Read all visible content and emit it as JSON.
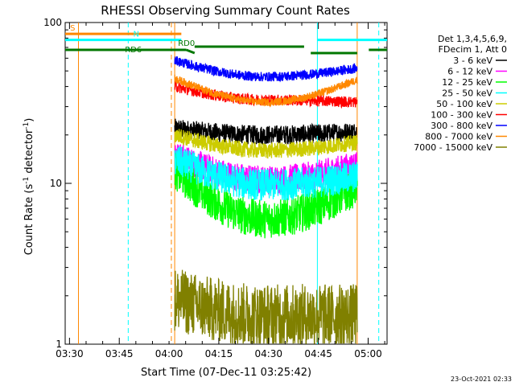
{
  "chart_data": {
    "type": "line",
    "title": "RHESSI Observing Summary Count Rates",
    "xlabel": "Start Time (07-Dec-11 03:25:42)",
    "ylabel": "Count Rate (s",
    "ylabel_sup": "-1",
    "ylabel_tail": " detector",
    "ylabel_end": ")",
    "y_scale": "log",
    "ylim": [
      1,
      100
    ],
    "y_ticks": [
      1,
      10,
      100
    ],
    "y_tick_labels": [
      "1",
      "10",
      "100"
    ],
    "xlim_minutes": [
      3.0,
      100.0
    ],
    "x_ticks_minutes": [
      4.3,
      19.3,
      34.3,
      49.3,
      64.3,
      79.3,
      94.3
    ],
    "x_tick_labels": [
      "03:30",
      "03:45",
      "04:00",
      "04:15",
      "04:30",
      "04:45",
      "05:00"
    ],
    "legend_header": [
      "Det 1,3,4,5,6,9,",
      "FDecim 1, Att 0"
    ],
    "legend_position": "right",
    "timestamp": "23-Oct-2021 02:33",
    "sun_window_minutes": [
      36.0,
      91.0
    ],
    "series": [
      {
        "name": "3 - 6 keV",
        "color": "#000000",
        "values_start": 22,
        "values_mid": 20,
        "values_end": 21,
        "noise": 0.06
      },
      {
        "name": "6 - 12 keV",
        "color": "#ff00ff",
        "values_start": 15,
        "values_mid": 10.5,
        "values_end": 13,
        "noise": 0.09
      },
      {
        "name": "12 - 25 keV",
        "color": "#00ff00",
        "values_start": 12,
        "values_mid": 6,
        "values_end": 9.5,
        "noise": 0.12
      },
      {
        "name": "25 - 50 keV",
        "color": "#00ffff",
        "values_start": 14,
        "values_mid": 9.8,
        "values_end": 11,
        "noise": 0.1
      },
      {
        "name": "50 - 100 keV",
        "color": "#cccc00",
        "values_start": 20,
        "values_mid": 16,
        "values_end": 18,
        "noise": 0.05
      },
      {
        "name": "100 - 300 keV",
        "color": "#ff0000",
        "values_start": 40,
        "values_mid": 33,
        "values_end": 32,
        "noise": 0.035
      },
      {
        "name": "300 - 800 keV",
        "color": "#0000ff",
        "values_start": 58,
        "values_mid": 46,
        "values_end": 52,
        "noise": 0.03
      },
      {
        "name": "800 - 7000 keV",
        "color": "#ff8800",
        "values_start": 45,
        "values_mid": 32,
        "values_end": 44,
        "noise": 0.025
      },
      {
        "name": "7000 - 15000 keV",
        "color": "#808000",
        "values_start": 1.9,
        "values_mid": 1.5,
        "values_end": 1.5,
        "noise": 0.2
      }
    ],
    "flags": [
      {
        "label": "S",
        "color": "#ff8800",
        "x_minutes": [
          3.0,
          38.0
        ],
        "level": 85,
        "dashed_at": 35.0
      },
      {
        "label": "N",
        "color": "#00ffff",
        "x_minutes": [
          3.0,
          38.0
        ],
        "level": 78,
        "dashed_at": 22.0
      },
      {
        "label": "RD6",
        "color": "#007700",
        "x_minutes": [
          3.0,
          100.0
        ],
        "level": 70
      },
      {
        "label": "RD0",
        "color": "#007700",
        "x_minutes": [
          38.0,
          75.0
        ],
        "level": 70
      }
    ]
  }
}
